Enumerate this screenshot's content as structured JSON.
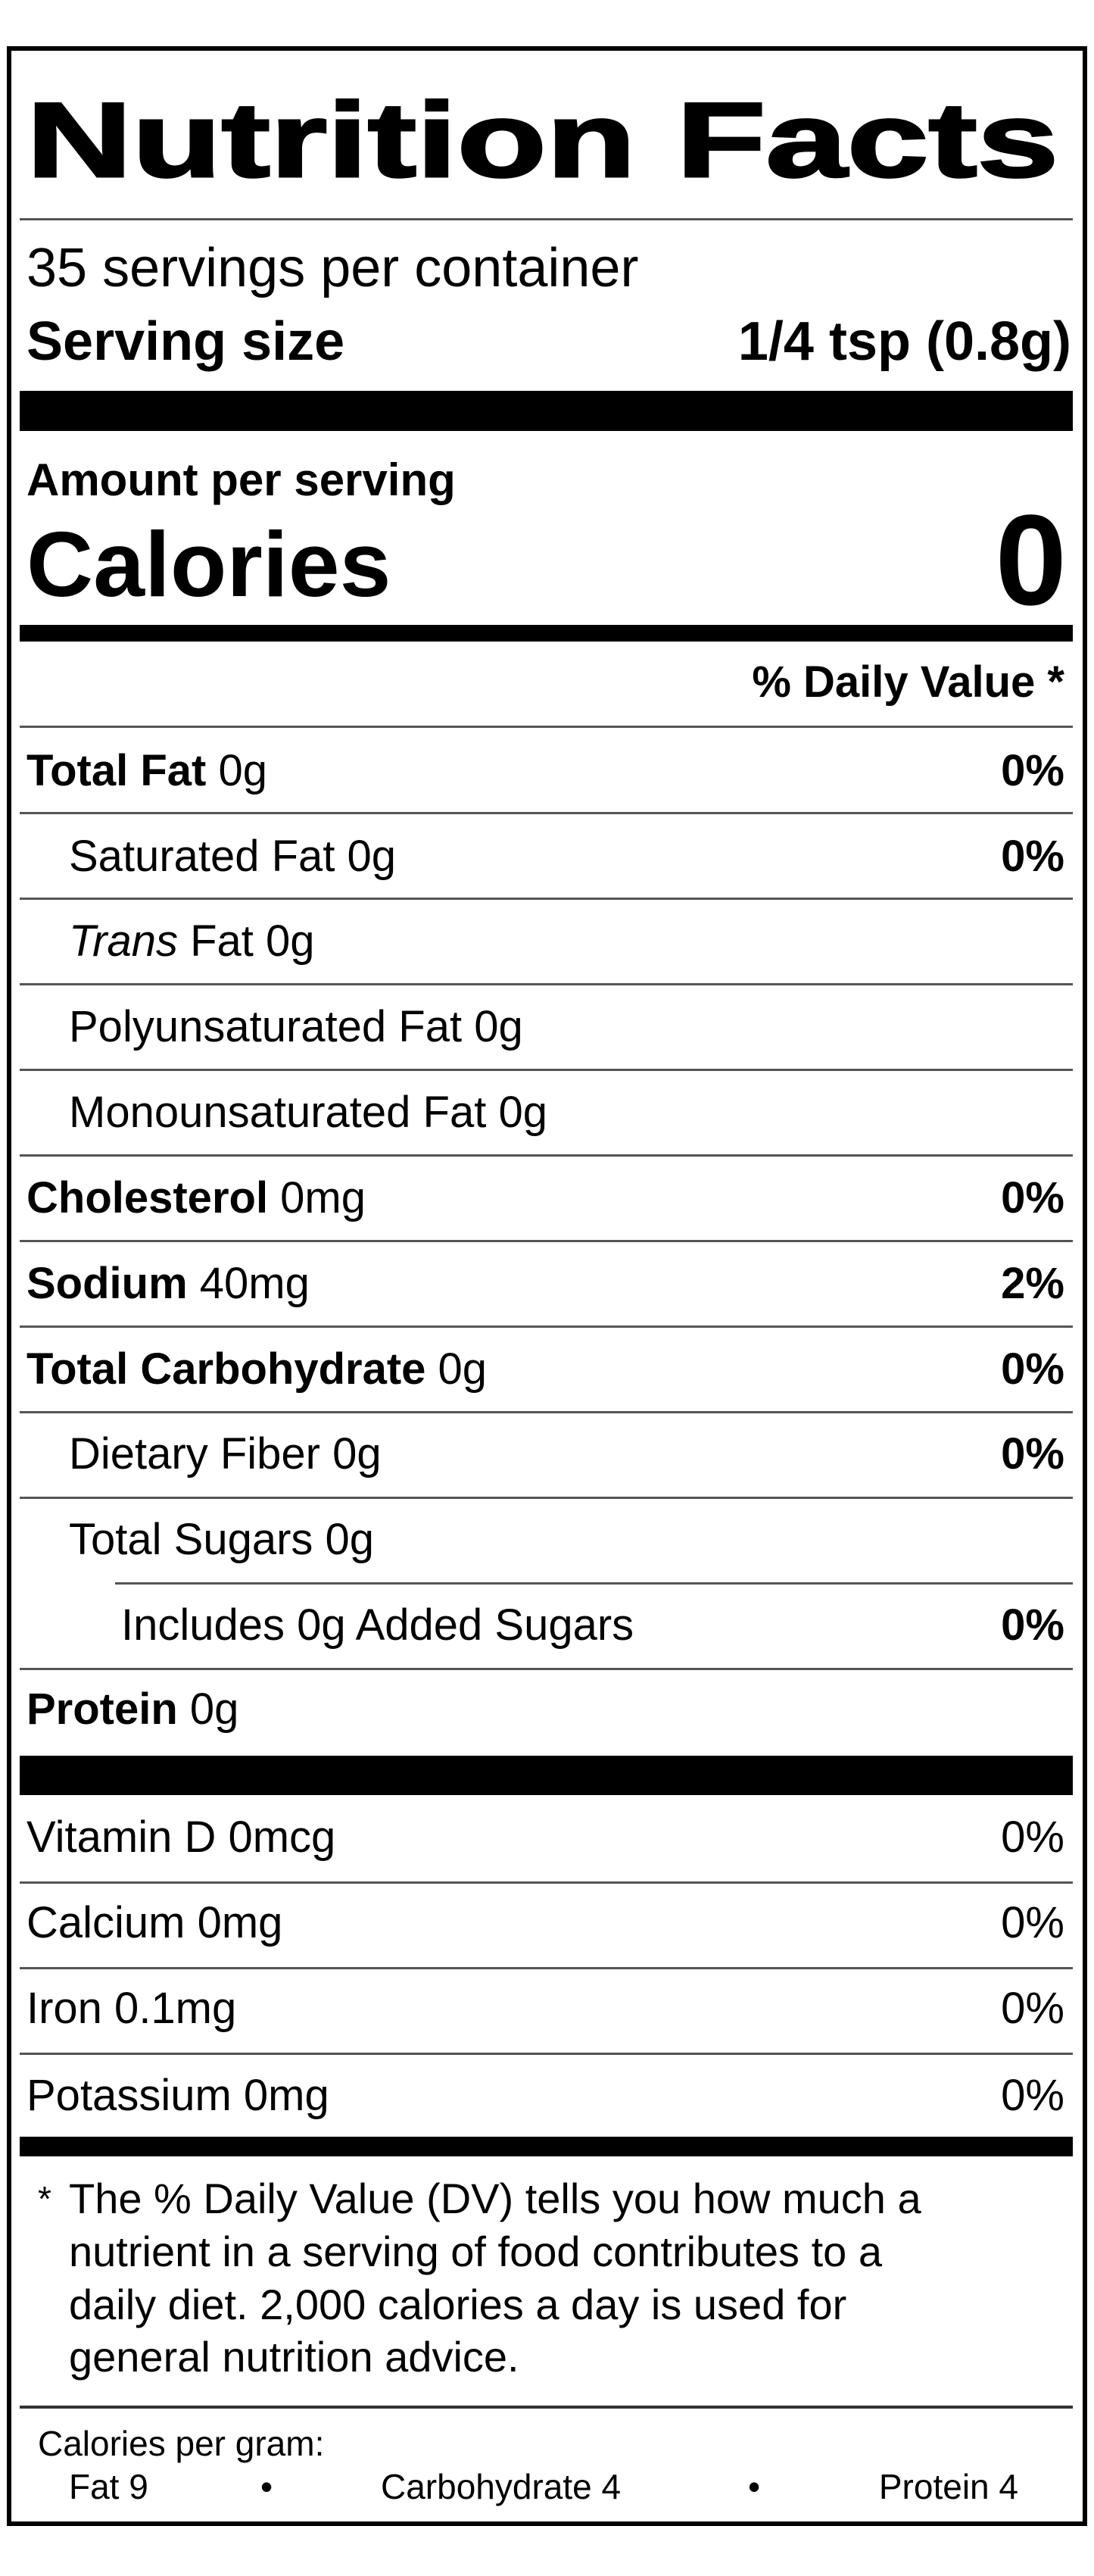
{
  "title": "Nutrition Facts",
  "servings_per_container": "35 servings per container",
  "serving_size_label": "Serving size",
  "serving_size_value": "1/4 tsp (0.8g)",
  "amount_per_serving": "Amount per serving",
  "calories_label": "Calories",
  "calories_value": "0",
  "daily_value_header": "% Daily Value *",
  "nutrients": [
    {
      "name": "Total Fat",
      "amount": " 0g",
      "dv": "0%",
      "indent": 0,
      "bold": true
    },
    {
      "name": "Saturated Fat",
      "amount": " 0g",
      "dv": "0%",
      "indent": 1,
      "bold": false
    },
    {
      "name": "Trans",
      "amount": " Fat 0g",
      "dv": "",
      "indent": 1,
      "bold": false,
      "italic": true
    },
    {
      "name": "Polyunsaturated Fat",
      "amount": " 0g",
      "dv": "",
      "indent": 1,
      "bold": false
    },
    {
      "name": "Monounsaturated Fat",
      "amount": " 0g",
      "dv": "",
      "indent": 1,
      "bold": false
    },
    {
      "name": "Cholesterol",
      "amount": " 0mg",
      "dv": "0%",
      "indent": 0,
      "bold": true
    },
    {
      "name": "Sodium",
      "amount": " 40mg",
      "dv": "2%",
      "indent": 0,
      "bold": true
    },
    {
      "name": "Total Carbohydrate",
      "amount": " 0g",
      "dv": "0%",
      "indent": 0,
      "bold": true
    },
    {
      "name": "Dietary Fiber",
      "amount": " 0g",
      "dv": "0%",
      "indent": 1,
      "bold": false
    },
    {
      "name": "Total Sugars",
      "amount": " 0g",
      "dv": "",
      "indent": 1,
      "bold": false
    },
    {
      "name": "Includes 0g Added Sugars",
      "amount": "",
      "dv": "0%",
      "indent": 2,
      "bold": false
    },
    {
      "name": "Protein",
      "amount": " 0g",
      "dv": "",
      "indent": 0,
      "bold": true
    }
  ],
  "vitamins": [
    {
      "name": "Vitamin D 0mcg",
      "dv": "0%"
    },
    {
      "name": "Calcium 0mg",
      "dv": "0%"
    },
    {
      "name": "Iron 0.1mg",
      "dv": "0%"
    },
    {
      "name": "Potassium 0mg",
      "dv": "0%"
    }
  ],
  "footnote": {
    "asterisk": "*",
    "lines": [
      "The % Daily Value (DV) tells you how much a",
      "nutrient in a serving of food contributes to a",
      "daily diet. 2,000 calories a day is used for",
      "general nutrition advice."
    ]
  },
  "calories_per_gram": {
    "label": "Calories per gram:",
    "fat": "Fat 9",
    "carbohydrate": "Carbohydrate 4",
    "protein": "Protein 4",
    "separator": "•"
  }
}
